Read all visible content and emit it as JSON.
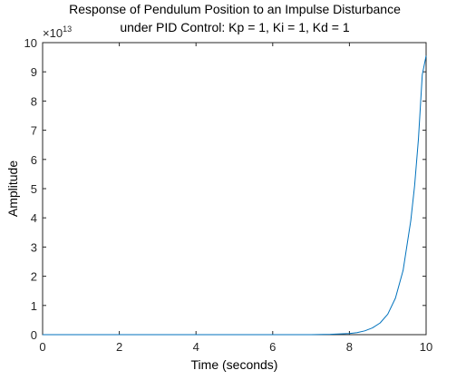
{
  "chart_data": {
    "type": "line",
    "title": [
      "Response of Pendulum Position to an Impulse Disturbance",
      "under PID Control: Kp = 1, Ki = 1, Kd = 1"
    ],
    "xlabel": "Time (seconds)",
    "ylabel": "Amplitude",
    "xlim": [
      0,
      10
    ],
    "ylim": [
      0,
      10
    ],
    "y_exponent_label": "×10",
    "y_exponent_power": "13",
    "xticks": [
      "0",
      "2",
      "4",
      "6",
      "8",
      "10"
    ],
    "yticks": [
      "0",
      "1",
      "2",
      "3",
      "4",
      "5",
      "6",
      "7",
      "8",
      "9",
      "10"
    ],
    "grid": false,
    "legend": "none",
    "series": [
      {
        "color": "#0072bd",
        "x": [
          0,
          7.0,
          7.5,
          8.0,
          8.2,
          8.4,
          8.6,
          8.8,
          9.0,
          9.2,
          9.4,
          9.6,
          9.7,
          9.8,
          9.9,
          10.0
        ],
        "y": [
          0,
          0,
          0.01,
          0.04,
          0.07,
          0.13,
          0.23,
          0.4,
          0.7,
          1.25,
          2.2,
          3.9,
          5.1,
          6.7,
          8.9,
          9.55
        ]
      }
    ]
  }
}
